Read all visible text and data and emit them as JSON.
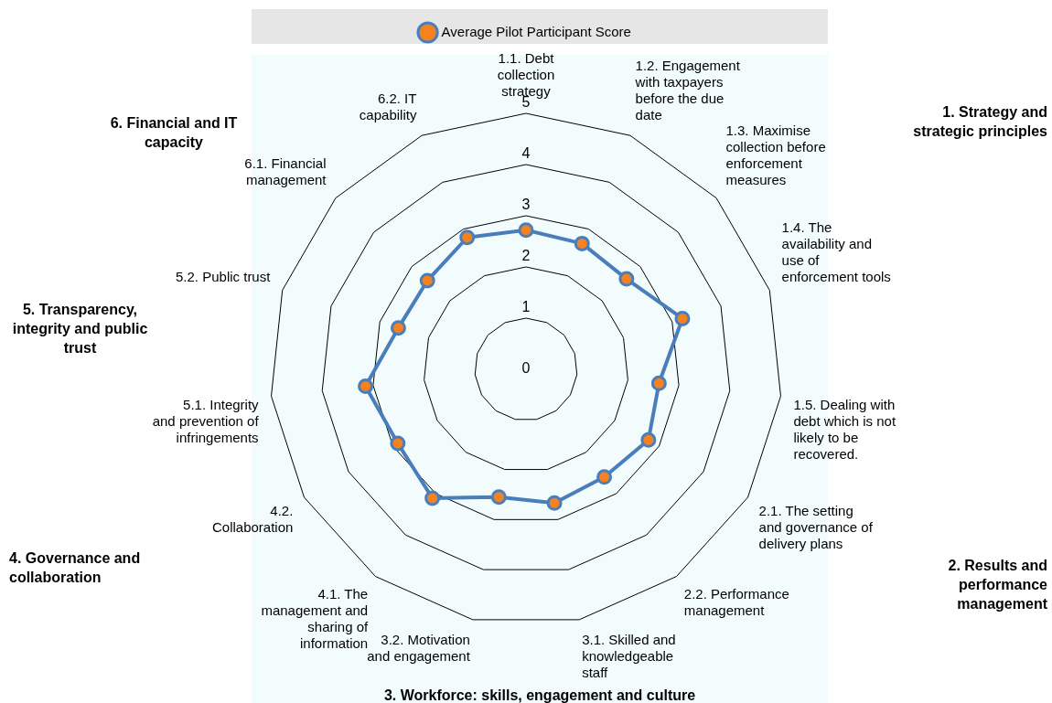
{
  "chart_data": {
    "type": "radar",
    "categories": [
      "1.1. Debt collection strategy",
      "1.2. Engagement with taxpayers before the due date",
      "1.3. Maximise collection before enforcement measures",
      "1.4. The availability and use of enforcement tools",
      "1.5. Dealing with debt which is not likely to be recovered.",
      "2.1. The setting and governance of delivery plans",
      "2.2. Performance management",
      "3.1. Skilled and knowledgeable staff",
      "3.2. Motivation and engagement",
      "4.1. The management and sharing of information",
      "4.2. Collaboration",
      "5.1. Integrity and prevention of infringements",
      "5.2. Public trust",
      "6.1. Financial management",
      "6.2. IT capability"
    ],
    "series": [
      {
        "name": "Average Pilot Participant Score",
        "color": "#4a7ebb",
        "values": [
          2.72,
          2.69,
          2.64,
          3.21,
          2.61,
          2.76,
          2.6,
          2.67,
          2.55,
          3.11,
          2.89,
          3.15,
          2.62,
          2.59,
          2.82
        ]
      }
    ],
    "ylim": [
      0,
      5
    ],
    "yticks": [
      0,
      1,
      2,
      3,
      4,
      5
    ],
    "grid": true,
    "legend": "top",
    "marker": "circle",
    "line_style": "solid",
    "annotations": [
      "1. Strategy and strategic principles",
      "2. Results and performance management",
      "3. Workforce: skills, engagement and culture",
      "4. Governance and collaboration",
      "5. Transparency, integrity and public trust",
      "6. Financial and IT capacity"
    ]
  }
}
